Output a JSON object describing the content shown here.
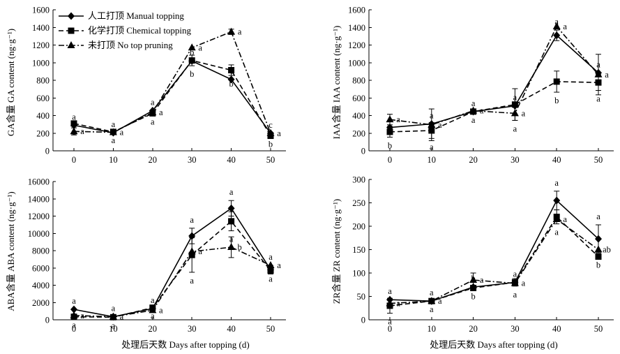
{
  "figure": {
    "xlabel_left": "处理后天数 Days after topping (d)",
    "xlabel_right": "处理后天数 Days after topping (d)"
  },
  "legend": [
    {
      "name": "人工打顶 Manual topping",
      "marker": "diamond",
      "dash": "solid"
    },
    {
      "name": "化学打顶 Chemical topping",
      "marker": "square",
      "dash": "dash"
    },
    {
      "name": "未打顶 No top pruning",
      "marker": "triangle",
      "dash": "dashdot"
    }
  ],
  "chart_data": [
    {
      "id": "ga",
      "type": "line",
      "position": "top-left",
      "ylabel": "GA含量 GA content (ng·g⁻¹)",
      "ylim": [
        0,
        1600
      ],
      "yticks": [
        0,
        200,
        400,
        600,
        800,
        1000,
        1200,
        1400,
        1600
      ],
      "x": [
        0,
        10,
        20,
        30,
        40,
        50
      ],
      "xticks": [
        0,
        10,
        20,
        30,
        40,
        50
      ],
      "series": [
        {
          "name": "人工打顶 Manual topping",
          "values": [
            290,
            205,
            455,
            1020,
            810,
            200
          ],
          "errors": [
            0,
            0,
            0,
            0,
            0,
            0
          ],
          "letters": [
            "a",
            "a",
            "a",
            "b",
            "c",
            "c"
          ]
        },
        {
          "name": "化学打顶 Chemical topping",
          "values": [
            310,
            215,
            425,
            1025,
            915,
            170
          ],
          "errors": [
            0,
            0,
            0,
            60,
            60,
            0
          ],
          "letters": [
            "a",
            "a",
            "a",
            "b",
            "b",
            "b"
          ]
        },
        {
          "name": "未打顶 No top pruning",
          "values": [
            220,
            210,
            435,
            1170,
            1350,
            200
          ],
          "errors": [
            40,
            0,
            0,
            0,
            30,
            0
          ],
          "letters": [
            "a",
            "a",
            "a",
            "a",
            "a",
            "a"
          ]
        }
      ]
    },
    {
      "id": "iaa",
      "type": "line",
      "position": "top-right",
      "ylabel": "IAA含量 IAA content (ng·g⁻¹)",
      "ylim": [
        0,
        1600
      ],
      "yticks": [
        0,
        200,
        400,
        600,
        800,
        1000,
        1200,
        1400,
        1600
      ],
      "x": [
        0,
        10,
        20,
        30,
        40,
        50
      ],
      "xticks": [
        0,
        10,
        20,
        30,
        40,
        50
      ],
      "series": [
        {
          "name": "人工打顶 Manual topping",
          "values": [
            265,
            305,
            445,
            510,
            1310,
            885
          ],
          "errors": [
            0,
            0,
            0,
            0,
            60,
            0
          ],
          "letters": [
            "a",
            "a",
            "a",
            "a",
            "a",
            "a"
          ]
        },
        {
          "name": "化学打顶 Chemical topping",
          "values": [
            215,
            230,
            445,
            525,
            785,
            775
          ],
          "errors": [
            60,
            90,
            0,
            180,
            120,
            90
          ],
          "letters": [
            "b",
            "a",
            "a",
            "a",
            "b",
            "a"
          ]
        },
        {
          "name": "未打顶 No top pruning",
          "values": [
            355,
            295,
            455,
            425,
            1410,
            865
          ],
          "errors": [
            60,
            180,
            0,
            80,
            0,
            230
          ],
          "letters": [
            "a",
            "a",
            "a",
            "a",
            "a",
            "a"
          ]
        }
      ]
    },
    {
      "id": "aba",
      "type": "line",
      "position": "bottom-left",
      "ylabel": "ABA含量 ABA content (ng·g⁻¹)",
      "ylim": [
        0,
        16000
      ],
      "yticks": [
        0,
        2000,
        4000,
        6000,
        8000,
        10000,
        12000,
        14000,
        16000
      ],
      "x": [
        0,
        10,
        20,
        30,
        40,
        50
      ],
      "xticks": [
        0,
        10,
        20,
        30,
        40,
        50
      ],
      "series": [
        {
          "name": "人工打顶 Manual topping",
          "values": [
            1200,
            350,
            1300,
            9700,
            12900,
            5800
          ],
          "errors": [
            0,
            0,
            0,
            900,
            900,
            500
          ],
          "letters": [
            "a",
            "a",
            "a",
            "a",
            "a",
            "a"
          ]
        },
        {
          "name": "化学打顶 Chemical topping",
          "values": [
            350,
            300,
            1400,
            7500,
            11400,
            5700
          ],
          "errors": [
            0,
            0,
            0,
            2000,
            1100,
            0
          ],
          "letters": [
            "a",
            "a",
            "a",
            "a",
            "a",
            "a"
          ]
        },
        {
          "name": "未打顶 No top pruning",
          "values": [
            500,
            350,
            1100,
            7900,
            8400,
            6300
          ],
          "errors": [
            0,
            0,
            0,
            0,
            1200,
            0
          ],
          "letters": [
            "a",
            "a",
            "a",
            "a",
            "b",
            "a"
          ]
        }
      ]
    },
    {
      "id": "zr",
      "type": "line",
      "position": "bottom-right",
      "ylabel": "ZR含量 ZR content (ng·g⁻¹)",
      "ylim": [
        0,
        300
      ],
      "yticks": [
        0,
        50,
        100,
        150,
        200,
        250,
        300
      ],
      "x": [
        0,
        10,
        20,
        30,
        40,
        50
      ],
      "xticks": [
        0,
        10,
        20,
        30,
        40,
        50
      ],
      "series": [
        {
          "name": "人工打顶 Manual topping",
          "values": [
            43,
            40,
            70,
            80,
            255,
            173
          ],
          "errors": [
            0,
            0,
            0,
            0,
            20,
            30
          ],
          "letters": [
            "a",
            "a",
            "b",
            "a",
            "a",
            "a"
          ]
        },
        {
          "name": "化学打顶 Chemical topping",
          "values": [
            30,
            40,
            68,
            80,
            220,
            135
          ],
          "errors": [
            16,
            0,
            0,
            8,
            15,
            0
          ],
          "letters": [
            "a",
            "a",
            "b",
            "a",
            "a",
            "b"
          ]
        },
        {
          "name": "未打顶 No top pruning",
          "values": [
            35,
            40,
            85,
            78,
            215,
            150
          ],
          "errors": [
            0,
            0,
            15,
            0,
            0,
            0
          ],
          "letters": [
            "a",
            "a",
            "a",
            "a",
            "a",
            "ab"
          ]
        }
      ]
    }
  ]
}
